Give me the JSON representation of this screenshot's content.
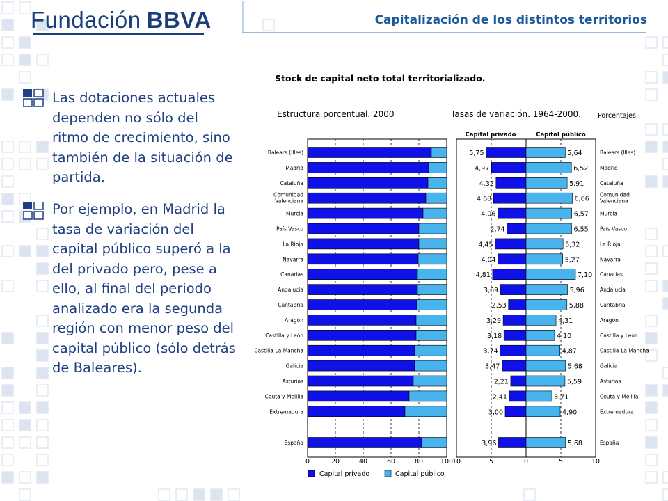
{
  "logo": {
    "text": "Fundación",
    "bold": "BBVA"
  },
  "header": {
    "title": "Capitalización de los distintos territorios"
  },
  "bullets": [
    {
      "text": "Las dotaciones actuales dependen no sólo del ritmo de crecimiento, sino también de la situación de partida."
    },
    {
      "text": "Por ejemplo, en Madrid la tasa de variación del capital público superó a la del privado pero, pese a ello, al final del periodo analizado era la segunda región con menor peso del capital público (sólo detrás de Baleares)."
    }
  ],
  "colors": {
    "private": "#1010e8",
    "public": "#48b4ee",
    "text": "#1f3f82",
    "header": "#1b5a9a"
  },
  "chart_data": {
    "type": "bar",
    "title": "Stock de capital neto total territorializado.",
    "left_panel": {
      "subtitle": "Estructura porcentual. 2000",
      "xlim": [
        0,
        100
      ],
      "ticks": [
        "0",
        "20",
        "40",
        "60",
        "80",
        "100"
      ],
      "stacked": true
    },
    "right_panel": {
      "subtitle": "Tasas de variación. 1964-2000.",
      "unit": "Porcentajes",
      "left_header": "Capital privado",
      "right_header": "Capital público",
      "xlim": [
        -10,
        10
      ],
      "ticks": [
        "10",
        "5",
        "0",
        "5",
        "10"
      ]
    },
    "categories": [
      "Balears (Illes)",
      "Madrid",
      "Cataluña",
      "Comunidad Valenciana",
      "Murcia",
      "País Vasco",
      "La Rioja",
      "Navarra",
      "Canarias",
      "Andalucía",
      "Cantabria",
      "Aragón",
      "Castilla y León",
      "Castilla-La Mancha",
      "Galicia",
      "Asturias",
      "Ceuta y Melilla",
      "Extremadura",
      "España"
    ],
    "series": [
      {
        "name": "Capital privado",
        "share": [
          89,
          87,
          86.5,
          85,
          83,
          80,
          80,
          79.5,
          79,
          79,
          78.5,
          78,
          78,
          77,
          77,
          76,
          73,
          70,
          82
        ]
      },
      {
        "name": "Capital público",
        "share": [
          11,
          13,
          13.5,
          15,
          17,
          20,
          20,
          20.5,
          21,
          21,
          21.5,
          22,
          22,
          23,
          23,
          24,
          27,
          30,
          18
        ]
      }
    ],
    "rates_private": [
      "5,75",
      "4,97",
      "4,32",
      "4,68",
      "4,06",
      "2,74",
      "4,45",
      "4,04",
      "4,81",
      "3,69",
      "2,53",
      "3,29",
      "3,18",
      "3,74",
      "3,47",
      "2,21",
      "2,41",
      "3,00",
      "3,96"
    ],
    "rates_public": [
      "5,64",
      "6,52",
      "5,91",
      "6,66",
      "6,57",
      "6,55",
      "5,32",
      "5,27",
      "7,10",
      "5,96",
      "5,88",
      "4,31",
      "4,10",
      "4,87",
      "5,68",
      "5,59",
      "3,71",
      "4,90",
      "5,68"
    ],
    "legend": [
      "Capital privado",
      "Capital público"
    ],
    "legend_position": "bottom"
  }
}
